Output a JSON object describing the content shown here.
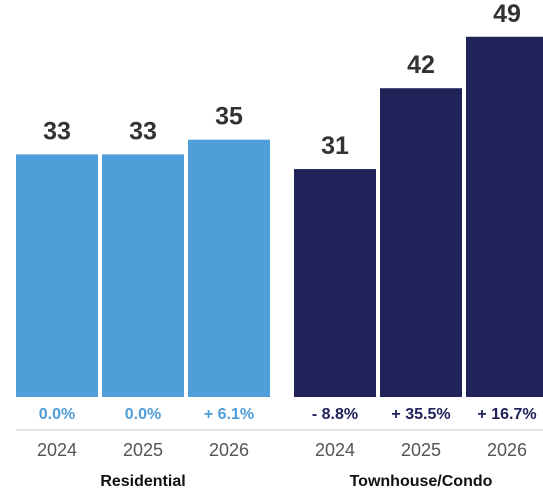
{
  "chart_data": {
    "type": "bar",
    "ylim": [
      0,
      54
    ],
    "groups": [
      {
        "name": "Residential",
        "color": "#4f9dd9",
        "categories": [
          "2024",
          "2025",
          "2026"
        ],
        "values": [
          33,
          33,
          35
        ],
        "value_labels": [
          "33",
          "33",
          "35"
        ],
        "pct_labels": [
          "0.0%",
          "0.0%",
          "+ 6.1%"
        ]
      },
      {
        "name": "Townhouse/Condo",
        "color": "#20225a",
        "categories": [
          "2024",
          "2025",
          "2026"
        ],
        "values": [
          31,
          42,
          49
        ],
        "value_labels": [
          "31",
          "42",
          "49"
        ],
        "pct_labels": [
          "- 8.8%",
          "+ 35.5%",
          "+ 16.7%"
        ]
      }
    ],
    "axis_color": "#c8c8c8"
  }
}
